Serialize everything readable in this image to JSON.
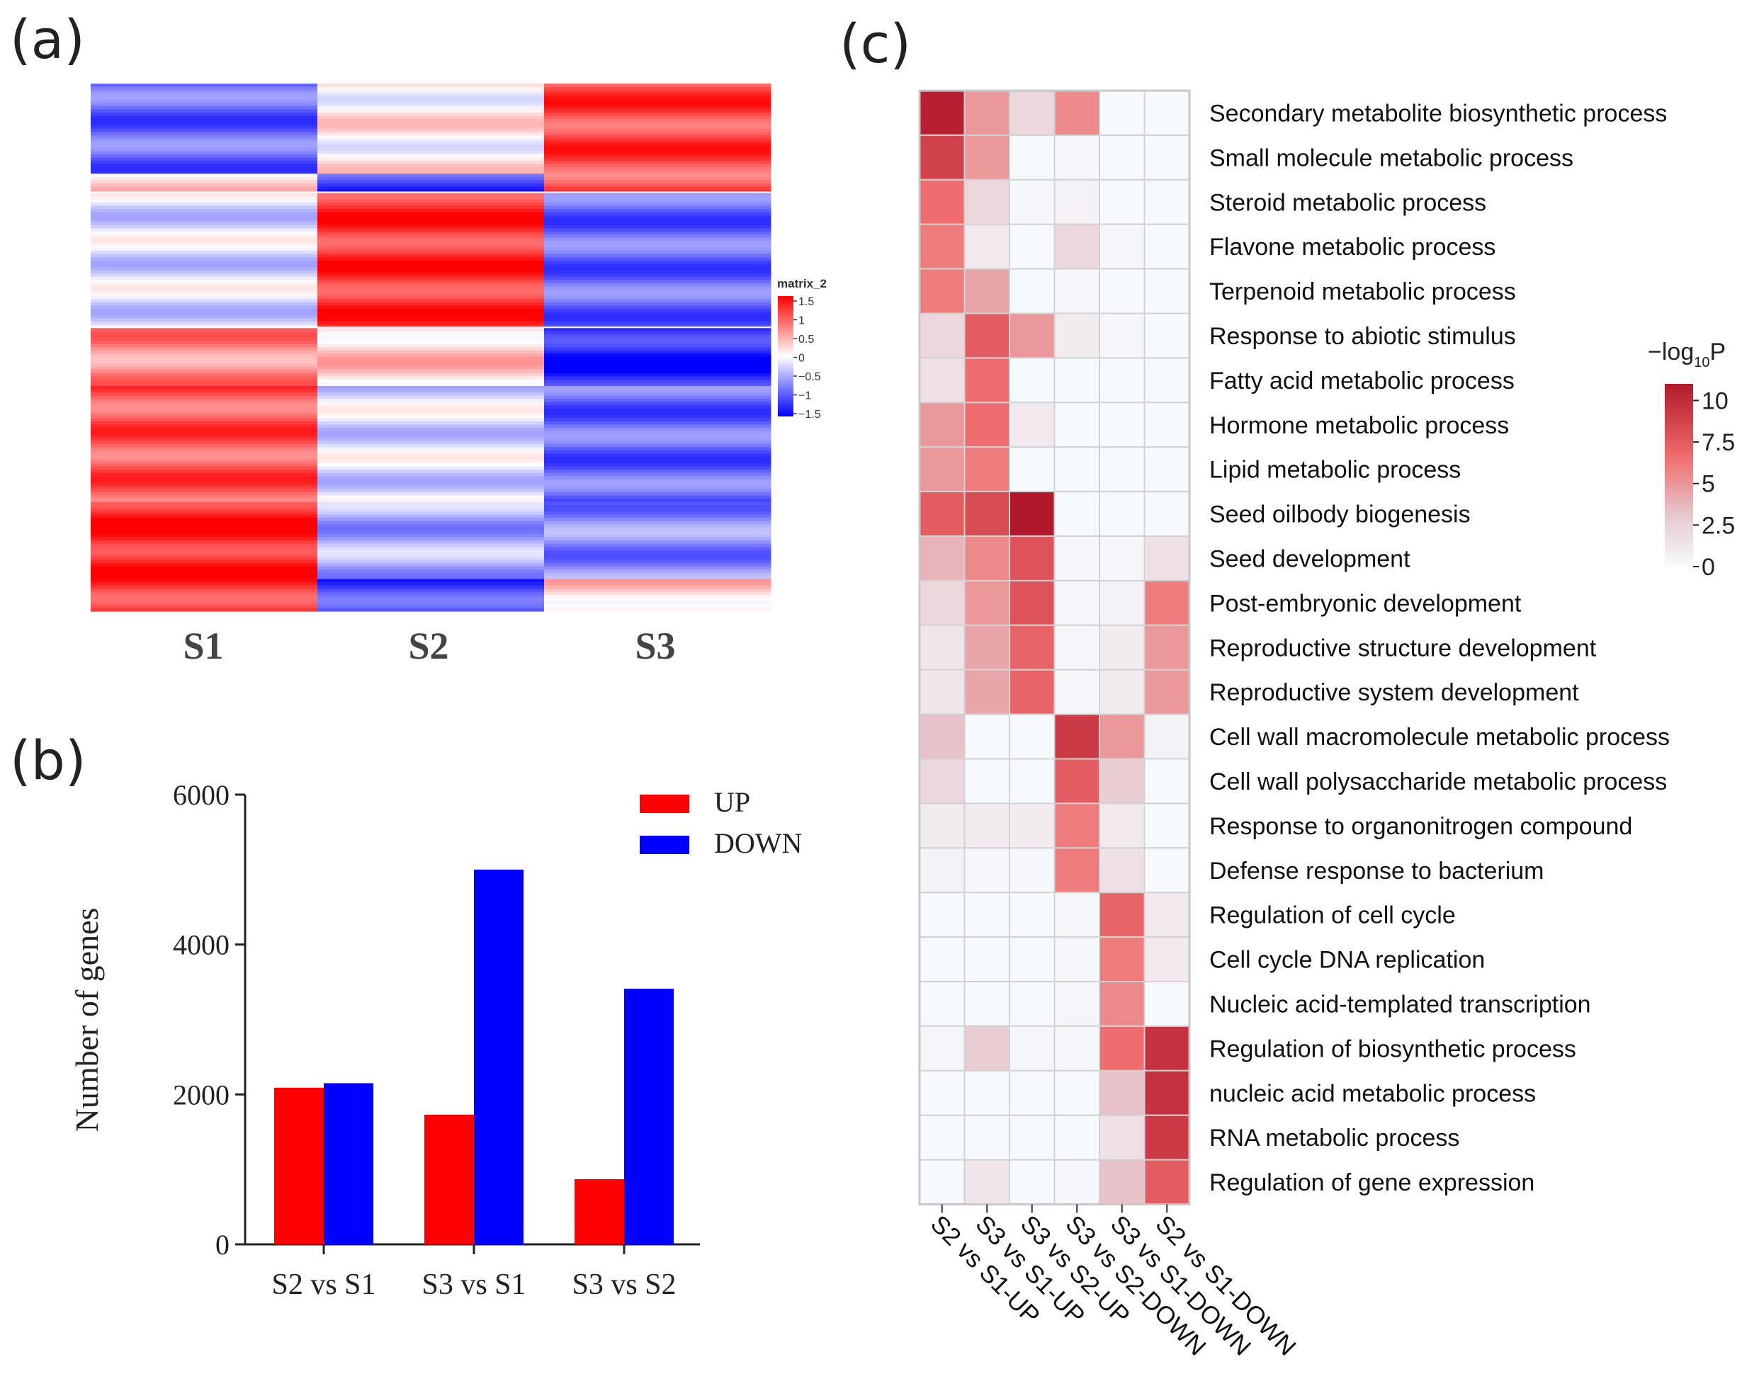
{
  "panel_labels": {
    "a": "(a)",
    "b": "(b)",
    "c": "(c)"
  },
  "chart_data": [
    {
      "id": "a",
      "type": "heatmap",
      "title": "",
      "columns": [
        "S1",
        "S2",
        "S3"
      ],
      "legend_title": "matrix_2",
      "legend_ticks": [
        "1.5",
        "1",
        "0.5",
        "0",
        "−0.5",
        "−1",
        "−1.5"
      ],
      "color_range": [
        -1.5,
        1.5
      ],
      "clusters": [
        {
          "rows": 28,
          "values": [
            -0.9,
            0.1,
            1.1
          ]
        },
        {
          "rows": 6,
          "values": [
            0.2,
            -1.1,
            1.0
          ]
        },
        {
          "rows": 42,
          "values": [
            -0.2,
            1.2,
            -0.9
          ]
        },
        {
          "rows": 18,
          "values": [
            0.7,
            0.3,
            -1.3
          ]
        },
        {
          "rows": 36,
          "values": [
            1.0,
            -0.2,
            -0.9
          ]
        },
        {
          "rows": 24,
          "values": [
            1.3,
            -0.5,
            -0.7
          ]
        },
        {
          "rows": 10,
          "values": [
            1.2,
            -1.1,
            0.3
          ]
        }
      ]
    },
    {
      "id": "b",
      "type": "bar",
      "categories": [
        "S2 vs S1",
        "S3 vs S1",
        "S3 vs S2"
      ],
      "series": [
        {
          "name": "UP",
          "color": "#ff0000",
          "values": [
            2090,
            1730,
            870
          ]
        },
        {
          "name": "DOWN",
          "color": "#0000ff",
          "values": [
            2150,
            5000,
            3410
          ]
        }
      ],
      "xlabel": "",
      "ylabel": "Number of genes",
      "ylim": [
        0,
        6000
      ],
      "yticks": [
        "0",
        "2000",
        "4000",
        "6000"
      ],
      "legend": "top-right"
    },
    {
      "id": "c",
      "type": "heatmap",
      "columns": [
        "S2 vs S1-UP",
        "S3 vs S1-UP",
        "S3 vs S2-UP",
        "S3 vs S2-DOWN",
        "S3 vs S1-DOWN",
        "S2 vs S1-DOWN"
      ],
      "rows": [
        "Secondary metabolite biosynthetic process",
        "Small molecule metabolic process",
        "Steroid metabolic process",
        "Flavone metabolic process",
        "Terpenoid metabolic process",
        "Response to abiotic stimulus",
        "Fatty acid metabolic process",
        "Hormone metabolic process",
        "Lipid metabolic process",
        "Seed oilbody biogenesis",
        "Seed development",
        "Post-embryonic development",
        "Reproductive structure development",
        "Reproductive system development",
        "Cell wall macromolecule metabolic process",
        "Cell wall polysaccharide metabolic process",
        "Response to organonitrogen compound",
        "Defense response to bacterium",
        "Regulation of cell cycle",
        "Cell cycle DNA replication",
        "Nucleic acid-templated transcription",
        "Regulation of biosynthetic process",
        "nucleic acid metabolic process",
        "RNA metabolic process",
        "Regulation of gene expression"
      ],
      "values": [
        [
          10.5,
          4.5,
          2.0,
          5.0,
          0.1,
          0.1
        ],
        [
          8.5,
          4.5,
          0.1,
          0.2,
          0.1,
          0.1
        ],
        [
          6.0,
          2.0,
          0.2,
          0.5,
          0.1,
          0.1
        ],
        [
          5.5,
          1.0,
          0.1,
          2.0,
          0.2,
          0.1
        ],
        [
          5.5,
          4.0,
          0.1,
          0.2,
          0.1,
          0.1
        ],
        [
          2.0,
          7.0,
          4.5,
          0.8,
          0.2,
          0.1
        ],
        [
          1.5,
          6.0,
          0.1,
          0.1,
          0.1,
          0.1
        ],
        [
          4.5,
          6.0,
          1.0,
          0.1,
          0.1,
          0.1
        ],
        [
          4.5,
          5.5,
          0.1,
          0.1,
          0.1,
          0.1
        ],
        [
          7.0,
          8.0,
          11.0,
          0.1,
          0.1,
          0.1
        ],
        [
          3.5,
          5.0,
          7.5,
          0.2,
          0.2,
          1.5
        ],
        [
          2.0,
          4.5,
          7.5,
          0.3,
          0.5,
          5.5
        ],
        [
          1.2,
          4.0,
          6.5,
          0.3,
          0.8,
          4.5
        ],
        [
          1.2,
          4.0,
          6.5,
          0.3,
          0.8,
          4.5
        ],
        [
          3.0,
          0.1,
          0.1,
          9.0,
          4.5,
          0.5
        ],
        [
          2.0,
          0.1,
          0.1,
          7.0,
          2.5,
          0.1
        ],
        [
          0.8,
          0.8,
          0.8,
          5.5,
          1.0,
          0.1
        ],
        [
          0.5,
          0.2,
          0.2,
          5.5,
          1.5,
          0.1
        ],
        [
          0.1,
          0.1,
          0.1,
          0.3,
          6.5,
          1.0
        ],
        [
          0.1,
          0.1,
          0.1,
          0.3,
          5.5,
          1.0
        ],
        [
          0.1,
          0.1,
          0.1,
          0.3,
          5.0,
          0.1
        ],
        [
          0.3,
          2.5,
          0.3,
          0.3,
          6.0,
          9.5
        ],
        [
          0.1,
          0.1,
          0.1,
          0.1,
          3.0,
          9.5
        ],
        [
          0.1,
          0.1,
          0.1,
          0.1,
          1.5,
          9.0
        ],
        [
          0.1,
          1.2,
          0.1,
          0.2,
          3.0,
          7.0
        ]
      ],
      "legend_title": "−log",
      "legend_title_sub": "10",
      "legend_title_end": "P",
      "legend_ticks": [
        "10",
        "7.5",
        "5",
        "2.5",
        "0"
      ],
      "color_range": [
        0,
        11
      ]
    }
  ]
}
